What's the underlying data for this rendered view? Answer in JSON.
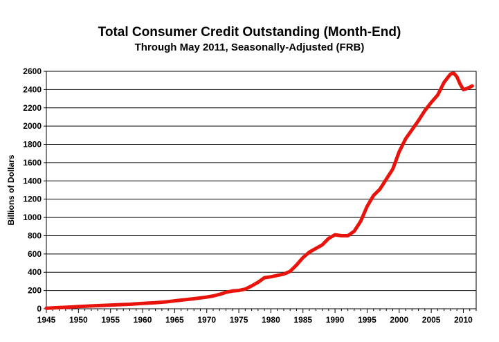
{
  "chart_data": {
    "type": "line",
    "title": "Total Consumer Credit Outstanding (Month-End)",
    "subtitle": "Through May 2011, Seasonally-Adjusted (FRB)",
    "xlabel": "",
    "ylabel": "Billions of Dollars",
    "xlim": [
      1945,
      2012
    ],
    "ylim": [
      0,
      2600
    ],
    "x_ticks": [
      1945,
      1950,
      1955,
      1960,
      1965,
      1970,
      1975,
      1980,
      1985,
      1990,
      1995,
      2000,
      2005,
      2010
    ],
    "y_ticks": [
      0,
      200,
      400,
      600,
      800,
      1000,
      1200,
      1400,
      1600,
      1800,
      2000,
      2200,
      2400,
      2600
    ],
    "grid": "horizontal",
    "legend": "none",
    "line_color": "#e8140c",
    "series": [
      {
        "x": [
          1945,
          1946,
          1947,
          1948,
          1949,
          1950,
          1952,
          1954,
          1956,
          1958,
          1960,
          1962,
          1964,
          1966,
          1968,
          1970,
          1971,
          1972,
          1973,
          1974,
          1975,
          1976,
          1977,
          1978,
          1979,
          1980,
          1981,
          1982,
          1983,
          1984,
          1985,
          1986,
          1987,
          1988,
          1989,
          1990,
          1991,
          1992,
          1993,
          1994,
          1995,
          1996,
          1997,
          1998,
          1999,
          2000,
          2001,
          2002,
          2003,
          2004,
          2005,
          2006,
          2007,
          2008,
          2008.5,
          2009,
          2009.5,
          2010,
          2010.5,
          2011.4
        ],
        "values": [
          6,
          9,
          13,
          16,
          20,
          25,
          31,
          37,
          44,
          49,
          58,
          66,
          78,
          95,
          110,
          128,
          140,
          158,
          180,
          195,
          200,
          215,
          250,
          290,
          340,
          350,
          365,
          380,
          410,
          480,
          560,
          620,
          660,
          700,
          770,
          810,
          800,
          800,
          850,
          960,
          1120,
          1240,
          1310,
          1420,
          1530,
          1720,
          1860,
          1960,
          2060,
          2170,
          2260,
          2340,
          2480,
          2570,
          2580,
          2540,
          2460,
          2400,
          2410,
          2440
        ]
      }
    ]
  }
}
